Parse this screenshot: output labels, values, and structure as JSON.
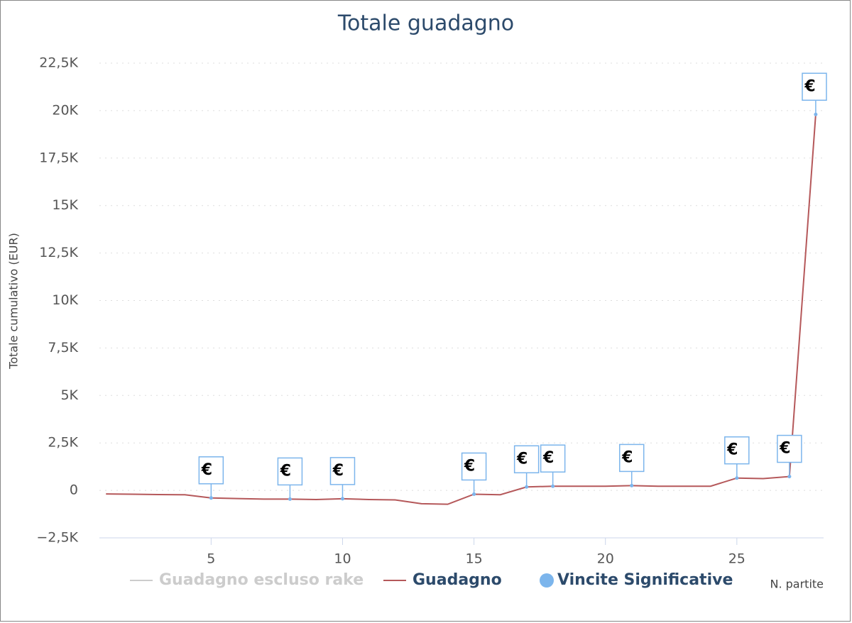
{
  "chart_data": {
    "type": "line",
    "title": "Totale guadagno",
    "y_label": "Totale cumulativo (EUR)",
    "x_label": "N. partite",
    "xlim": [
      0.75,
      28.3
    ],
    "ylim": [
      -2500,
      22500
    ],
    "xticks": [
      5,
      10,
      15,
      20,
      25
    ],
    "yticks": [
      {
        "value": -2500,
        "label": "−2,5K"
      },
      0,
      {
        "value": 2500,
        "label": "2,5K"
      },
      {
        "value": 5000,
        "label": "5K"
      },
      {
        "value": 7500,
        "label": "7,5K"
      },
      {
        "value": 10000,
        "label": "10K"
      },
      {
        "value": 12500,
        "label": "12,5K"
      },
      {
        "value": 15000,
        "label": "15K"
      },
      {
        "value": 17500,
        "label": "17,5K"
      },
      {
        "value": 20000,
        "label": "20K"
      },
      {
        "value": 22500,
        "label": "22,5K"
      }
    ],
    "grid": true,
    "series": [
      {
        "name": "Guadagno escluso rake",
        "color": "#cccccc",
        "visible": false
      },
      {
        "name": "Guadagno",
        "color": "#b5585a",
        "x": [
          1,
          2,
          3,
          4,
          5,
          6,
          7,
          8,
          9,
          10,
          11,
          12,
          13,
          14,
          15,
          16,
          17,
          18,
          19,
          20,
          21,
          22,
          23,
          24,
          25,
          26,
          27,
          28
        ],
        "values": [
          -190,
          -200,
          -220,
          -230,
          -400,
          -430,
          -460,
          -460,
          -480,
          -440,
          -480,
          -500,
          -700,
          -730,
          -200,
          -230,
          180,
          220,
          220,
          220,
          250,
          220,
          220,
          220,
          650,
          620,
          730,
          19800
        ]
      },
      {
        "name": "Vincite Significative",
        "color": "#7cb5ec",
        "type": "scatter",
        "marker_label": "€",
        "x": [
          5,
          8,
          10,
          15,
          17,
          18,
          21,
          25,
          27,
          28
        ],
        "values": [
          -400,
          -460,
          -440,
          -200,
          180,
          220,
          250,
          650,
          730,
          19800
        ]
      }
    ]
  }
}
